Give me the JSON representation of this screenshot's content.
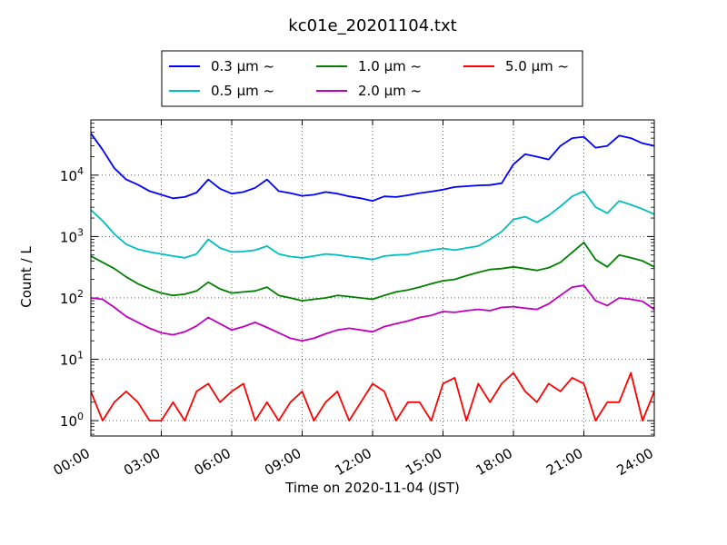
{
  "chart_data": {
    "type": "line",
    "title": "kc01e_20201104.txt",
    "xlabel": "Time on 2020-11-04 (JST)",
    "ylabel": "Count / L",
    "y_scale": "log",
    "ylim_log10": [
      -0.25,
      4.9
    ],
    "xlim_hours": [
      0,
      24
    ],
    "x_tick_labels": [
      "00:00",
      "03:00",
      "06:00",
      "09:00",
      "12:00",
      "15:00",
      "18:00",
      "21:00",
      "24:00"
    ],
    "y_tick_labels": [
      {
        "base": "10",
        "exp": "0"
      },
      {
        "base": "10",
        "exp": "1"
      },
      {
        "base": "10",
        "exp": "2"
      },
      {
        "base": "10",
        "exp": "3"
      },
      {
        "base": "10",
        "exp": "4"
      }
    ],
    "grid": true,
    "legend_position": "top",
    "series": [
      {
        "name": "0.3 μm ~",
        "color": "#0000ff",
        "x_hours": [
          0,
          0.5,
          1,
          1.5,
          2,
          2.5,
          3,
          3.5,
          4,
          4.5,
          5,
          5.5,
          6,
          6.5,
          7,
          7.5,
          8,
          8.5,
          9,
          9.5,
          10,
          10.5,
          11,
          11.5,
          12,
          12.5,
          13,
          13.5,
          14,
          14.5,
          15,
          15.5,
          16,
          16.5,
          17,
          17.5,
          18,
          18.5,
          19,
          19.5,
          20,
          20.5,
          21,
          21.5,
          22,
          22.5,
          23,
          23.5,
          24
        ],
        "values": [
          48000,
          26000,
          13000,
          8500,
          7000,
          5500,
          4800,
          4200,
          4400,
          5200,
          8500,
          6000,
          5000,
          5300,
          6200,
          8500,
          5500,
          5100,
          4600,
          4800,
          5300,
          5000,
          4500,
          4200,
          3800,
          4500,
          4400,
          4700,
          5100,
          5400,
          5800,
          6400,
          6600,
          6800,
          6900,
          7400,
          15000,
          22000,
          20000,
          18000,
          30000,
          40000,
          42000,
          28000,
          30000,
          44000,
          40000,
          33000,
          30000
        ]
      },
      {
        "name": "0.5 μm ~",
        "color": "#00bfbf",
        "x_hours": [
          0,
          0.5,
          1,
          1.5,
          2,
          2.5,
          3,
          3.5,
          4,
          4.5,
          5,
          5.5,
          6,
          6.5,
          7,
          7.5,
          8,
          8.5,
          9,
          9.5,
          10,
          10.5,
          11,
          11.5,
          12,
          12.5,
          13,
          13.5,
          14,
          14.5,
          15,
          15.5,
          16,
          16.5,
          17,
          17.5,
          18,
          18.5,
          19,
          19.5,
          20,
          20.5,
          21,
          21.5,
          22,
          22.5,
          23,
          23.5,
          24
        ],
        "values": [
          2700,
          1800,
          1100,
          750,
          620,
          560,
          520,
          480,
          450,
          520,
          900,
          650,
          560,
          570,
          600,
          700,
          520,
          470,
          450,
          480,
          520,
          500,
          470,
          450,
          420,
          480,
          500,
          510,
          560,
          600,
          640,
          600,
          650,
          700,
          900,
          1200,
          1900,
          2100,
          1700,
          2200,
          3100,
          4500,
          5500,
          3000,
          2400,
          3800,
          3300,
          2800,
          2300
        ]
      },
      {
        "name": "1.0 μm ~",
        "color": "#008000",
        "x_hours": [
          0,
          0.5,
          1,
          1.5,
          2,
          2.5,
          3,
          3.5,
          4,
          4.5,
          5,
          5.5,
          6,
          6.5,
          7,
          7.5,
          8,
          8.5,
          9,
          9.5,
          10,
          10.5,
          11,
          11.5,
          12,
          12.5,
          13,
          13.5,
          14,
          14.5,
          15,
          15.5,
          16,
          16.5,
          17,
          17.5,
          18,
          18.5,
          19,
          19.5,
          20,
          20.5,
          21,
          21.5,
          22,
          22.5,
          23,
          23.5,
          24
        ],
        "values": [
          480,
          380,
          300,
          220,
          170,
          140,
          120,
          110,
          115,
          130,
          180,
          140,
          120,
          125,
          130,
          150,
          110,
          100,
          90,
          95,
          100,
          110,
          105,
          100,
          95,
          110,
          125,
          135,
          150,
          170,
          190,
          200,
          230,
          260,
          290,
          300,
          320,
          300,
          280,
          310,
          380,
          550,
          800,
          420,
          320,
          500,
          450,
          400,
          320
        ]
      },
      {
        "name": "2.0 μm ~",
        "color": "#bf00bf",
        "x_hours": [
          0,
          0.5,
          1,
          1.5,
          2,
          2.5,
          3,
          3.5,
          4,
          4.5,
          5,
          5.5,
          6,
          6.5,
          7,
          7.5,
          8,
          8.5,
          9,
          9.5,
          10,
          10.5,
          11,
          11.5,
          12,
          12.5,
          13,
          13.5,
          14,
          14.5,
          15,
          15.5,
          16,
          16.5,
          17,
          17.5,
          18,
          18.5,
          19,
          19.5,
          20,
          20.5,
          21,
          21.5,
          22,
          22.5,
          23,
          23.5,
          24
        ],
        "values": [
          100,
          95,
          70,
          50,
          40,
          32,
          27,
          25,
          28,
          35,
          48,
          38,
          30,
          34,
          40,
          33,
          27,
          22,
          20,
          22,
          26,
          30,
          32,
          30,
          28,
          34,
          38,
          42,
          48,
          52,
          60,
          58,
          62,
          65,
          62,
          70,
          72,
          68,
          65,
          80,
          110,
          150,
          160,
          90,
          75,
          100,
          95,
          88,
          65
        ]
      },
      {
        "name": "5.0 μm ~",
        "color": "#ff0000",
        "x_hours": [
          0,
          0.5,
          1,
          1.5,
          2,
          2.5,
          3,
          3.5,
          4,
          4.5,
          5,
          5.5,
          6,
          6.5,
          7,
          7.5,
          8,
          8.5,
          9,
          9.5,
          10,
          10.5,
          11,
          11.5,
          12,
          12.5,
          13,
          13.5,
          14,
          14.5,
          15,
          15.5,
          16,
          16.5,
          17,
          17.5,
          18,
          18.5,
          19,
          19.5,
          20,
          20.5,
          21,
          21.5,
          22,
          22.5,
          23,
          23.5,
          24
        ],
        "values": [
          3,
          1,
          2,
          3,
          2,
          1,
          1,
          2,
          1,
          3,
          4,
          2,
          3,
          4,
          1,
          2,
          1,
          2,
          3,
          1,
          2,
          3,
          1,
          2,
          4,
          3,
          1,
          2,
          2,
          1,
          4,
          5,
          1,
          4,
          2,
          4,
          6,
          3,
          2,
          4,
          3,
          5,
          4,
          1,
          2,
          2,
          6,
          1,
          3
        ]
      }
    ]
  }
}
